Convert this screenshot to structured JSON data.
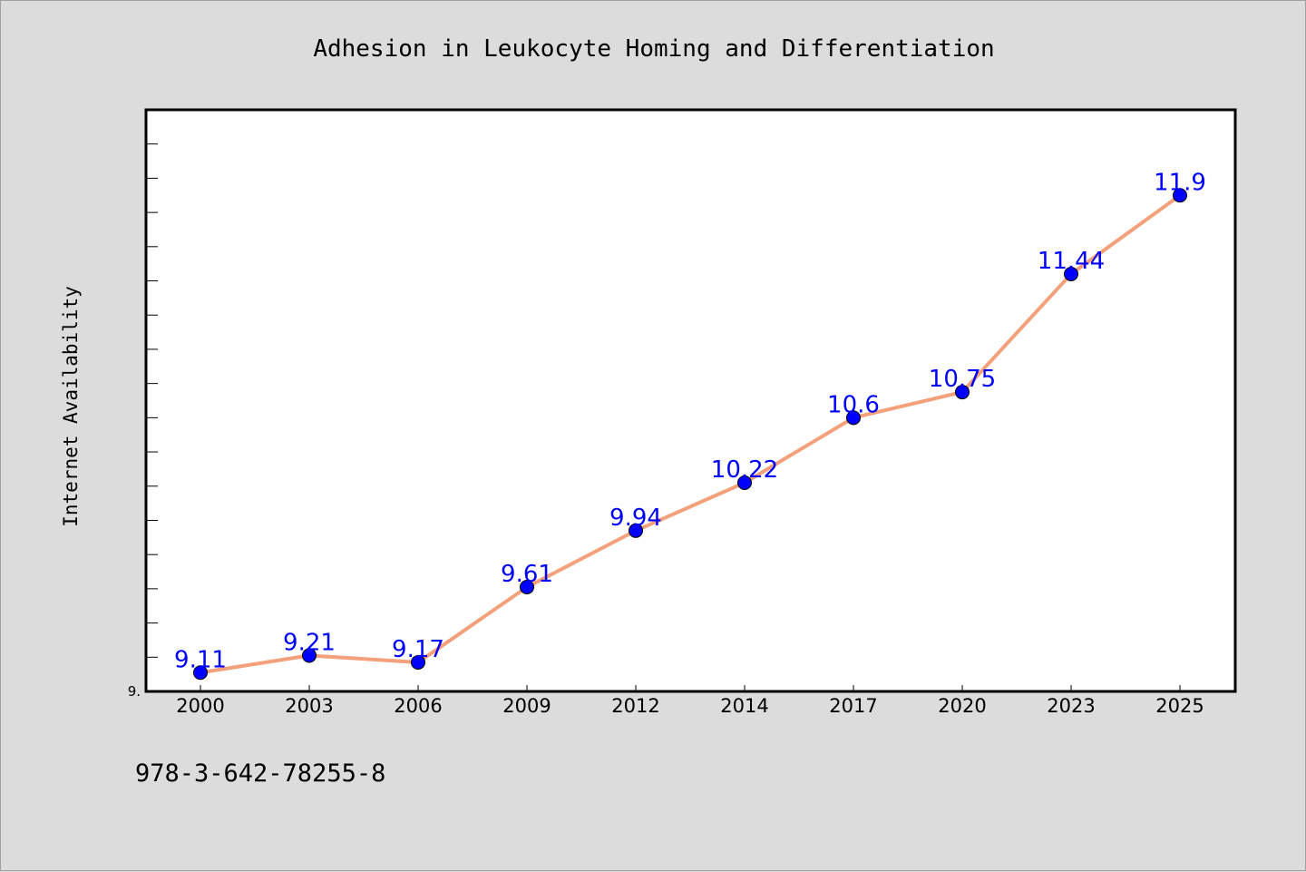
{
  "footnote": "978-3-642-78255-8",
  "colors": {
    "background": "#dcdcdc",
    "plot_background": "#ffffff",
    "line": "#f4a07a",
    "marker": "#0000ff",
    "data_label": "#0000ff"
  },
  "chart_data": {
    "type": "line",
    "title": "Adhesion in Leukocyte Homing and Differentiation",
    "xlabel": "",
    "ylabel": "Internet Availability",
    "x": [
      "2000",
      "2003",
      "2006",
      "2009",
      "2012",
      "2014",
      "2017",
      "2020",
      "2023",
      "2025"
    ],
    "series": [
      {
        "values": [
          9.11,
          9.21,
          9.17,
          9.61,
          9.94,
          10.22,
          10.6,
          10.75,
          11.44,
          11.9
        ]
      }
    ],
    "data_labels": [
      "9.11",
      "9.21",
      "9.17",
      "9.61",
      "9.94",
      "10.22",
      "10.6",
      "10.75",
      "11.44",
      "11.9"
    ],
    "y_tick_labels": [
      "9."
    ],
    "ylim": [
      9.0,
      12.4
    ],
    "y_minor_tick_step": 0.2,
    "grid": false,
    "legend": "none",
    "markers": "circle"
  }
}
